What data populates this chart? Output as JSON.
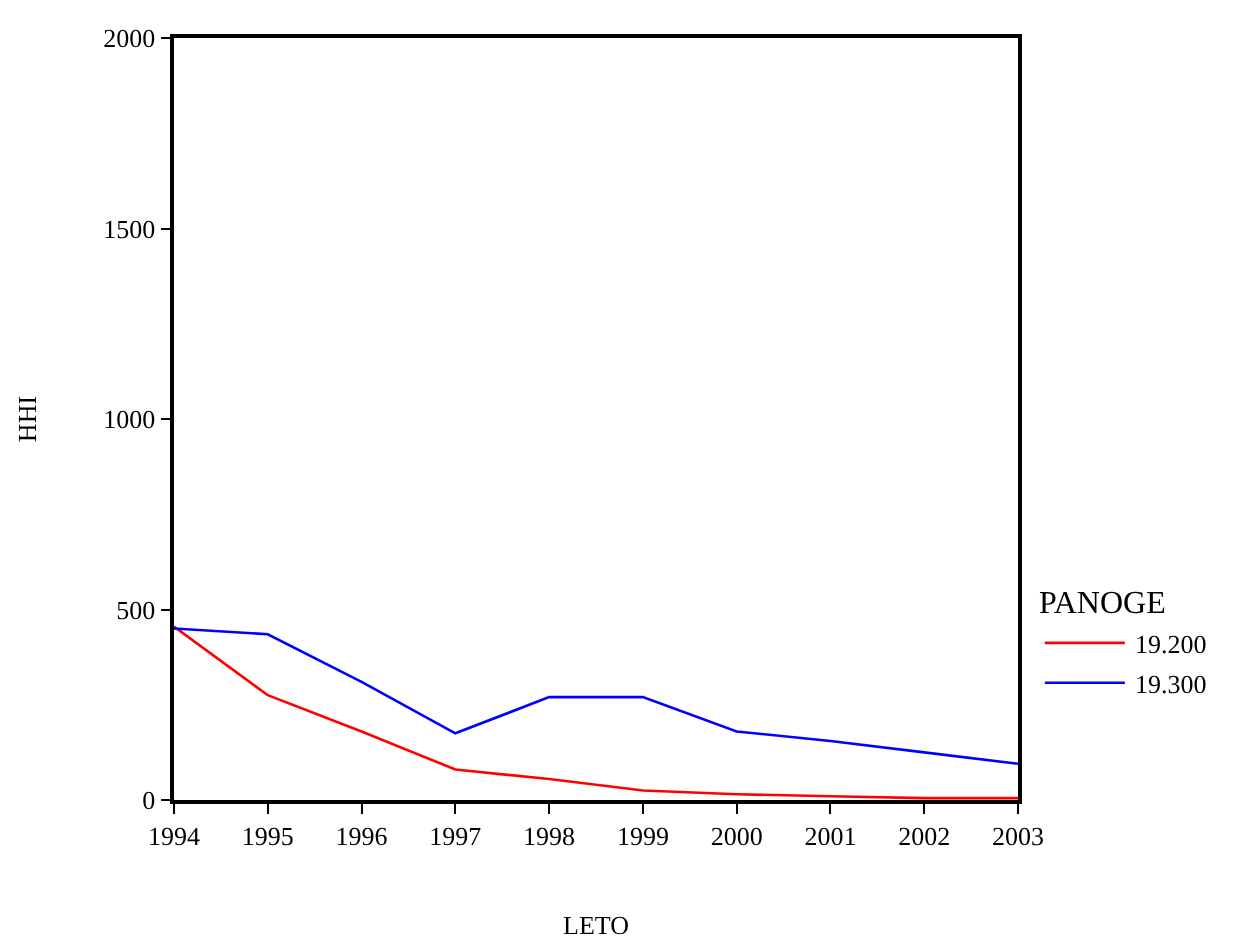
{
  "chart_data": {
    "type": "line",
    "xlabel": "LETO",
    "ylabel": "HHI",
    "legend_title": "PANOGE",
    "x": [
      1994,
      1995,
      1996,
      1997,
      1998,
      1999,
      2000,
      2001,
      2002,
      2003
    ],
    "series": [
      {
        "name": "19.200",
        "color": "#ff0000",
        "values": [
          455,
          275,
          180,
          80,
          55,
          25,
          15,
          10,
          5,
          5
        ]
      },
      {
        "name": "19.300",
        "color": "#0000ff",
        "values": [
          450,
          435,
          310,
          175,
          270,
          270,
          180,
          155,
          125,
          95
        ]
      }
    ],
    "xlim": [
      1994,
      2003
    ],
    "xticks": [
      1994,
      1995,
      1996,
      1997,
      1998,
      1999,
      2000,
      2001,
      2002,
      2003
    ],
    "ylim": [
      0,
      2000
    ],
    "yticks": [
      0,
      500,
      1000,
      1500,
      2000
    ],
    "grid": false,
    "legend": "right",
    "marker": "none",
    "line_style": "solid"
  }
}
